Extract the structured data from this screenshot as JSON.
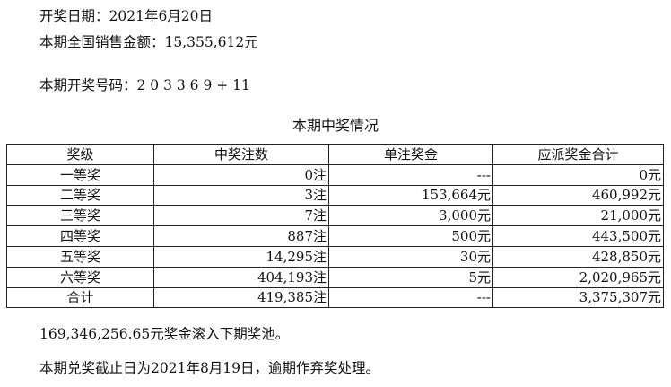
{
  "header": {
    "date": "开奖日期：2021年6月20日",
    "sales": "本期全国销售金额：15,355,612元",
    "numbers": "本期开奖号码：2 0 3 3 6 9 + 11"
  },
  "table": {
    "title": "本期中奖情况",
    "columns": [
      "奖级",
      "中奖注数",
      "单注奖金",
      "应派奖金合计"
    ],
    "rows": [
      [
        "一等奖",
        "0注",
        "---",
        "0元"
      ],
      [
        "二等奖",
        "3注",
        "153,664元",
        "460,992元"
      ],
      [
        "三等奖",
        "7注",
        "3,000元",
        "21,000元"
      ],
      [
        "四等奖",
        "887注",
        "500元",
        "443,500元"
      ],
      [
        "五等奖",
        "14,295注",
        "30元",
        "428,850元"
      ],
      [
        "六等奖",
        "404,193注",
        "5元",
        "2,020,965元"
      ],
      [
        "合计",
        "419,385注",
        "---",
        "3,375,307元"
      ]
    ]
  },
  "footer": {
    "pool": "169,346,256.65元奖金滚入下期奖池。",
    "deadline": "本期兑奖截止日为2021年8月19日，逾期作弃奖处理。"
  }
}
